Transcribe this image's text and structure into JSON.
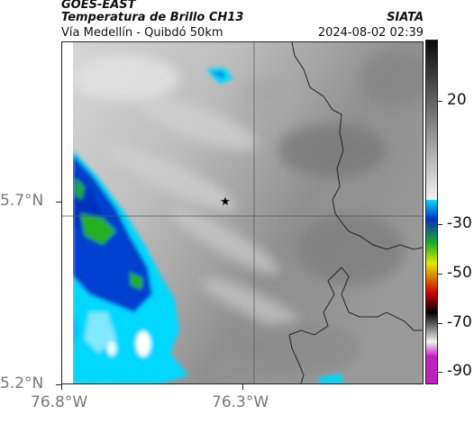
{
  "header": {
    "satellite": "GOES-EAST",
    "product": "Temperatura de Brillo CH13",
    "route": "Vía Medellín - Quibdó 50km",
    "org": "SIATA",
    "timestamp": "2024-08-02 02:39"
  },
  "map": {
    "lat_ticks": [
      {
        "value": 5.7,
        "label": "5.7°N"
      },
      {
        "value": 5.2,
        "label": "5.2°N"
      }
    ],
    "lon_ticks": [
      {
        "value": -76.8,
        "label": "76.8°W"
      },
      {
        "value": -76.3,
        "label": "76.3°W"
      }
    ],
    "lat_range": [
      5.2,
      6.14
    ],
    "lon_range": [
      -76.8,
      -75.8
    ],
    "marker": {
      "lon": -76.35,
      "lat": 5.7,
      "symbol": "★",
      "icon": "star-marker-icon"
    }
  },
  "colorbar": {
    "labels": [
      {
        "value": 20,
        "label": "20"
      },
      {
        "value": -30,
        "label": "-30"
      },
      {
        "value": -50,
        "label": "-50"
      },
      {
        "value": -70,
        "label": "-70"
      },
      {
        "value": -90,
        "label": "-90"
      }
    ],
    "range": [
      -95,
      45
    ],
    "colors": {
      "gray_light": "#f2f2f2",
      "gray_dark": "#0a0a0a",
      "cyan": "#00e0ff",
      "blue": "#0030c0",
      "green": "#20b020",
      "yellow": "#e6e600",
      "red": "#d00000",
      "black": "#000000",
      "magenta": "#c020c0"
    }
  }
}
